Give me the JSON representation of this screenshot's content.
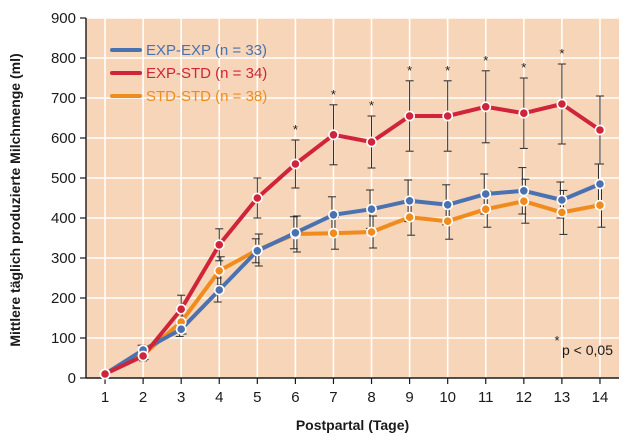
{
  "chart_data": {
    "type": "line",
    "xlabel": "Postpartal (Tage)",
    "ylabel": "Mittlere täglich produzierte Milchmenge (ml)",
    "x": [
      1,
      2,
      3,
      4,
      5,
      6,
      7,
      8,
      9,
      10,
      11,
      12,
      13,
      14
    ],
    "xlim": [
      0.5,
      14.5
    ],
    "ylim": [
      0,
      900
    ],
    "yticks": [
      0,
      100,
      200,
      300,
      400,
      500,
      600,
      700,
      800,
      900
    ],
    "grid": true,
    "legend_position": "top-left",
    "background_color": "#f6d5b8",
    "grid_color": "#ffffff",
    "series": [
      {
        "name": "EXP-EXP (n = 33)",
        "color": "#4a72b0",
        "values": [
          10,
          70,
          122,
          220,
          318,
          363,
          408,
          422,
          443,
          433,
          460,
          468,
          445,
          485
        ],
        "errors": [
          5,
          12,
          18,
          30,
          30,
          40,
          45,
          48,
          52,
          50,
          50,
          58,
          45,
          50
        ]
      },
      {
        "name": "EXP-STD (n = 34)",
        "color": "#d0243a",
        "values": [
          10,
          55,
          172,
          333,
          450,
          535,
          608,
          590,
          655,
          655,
          678,
          662,
          685,
          620
        ],
        "errors": [
          5,
          12,
          35,
          40,
          50,
          60,
          75,
          65,
          88,
          88,
          90,
          88,
          100,
          85
        ]
      },
      {
        "name": "STD-STD (n = 38)",
        "color": "#f08c1e",
        "values": [
          10,
          58,
          140,
          268,
          320,
          360,
          362,
          365,
          402,
          392,
          422,
          442,
          414,
          432
        ],
        "errors": [
          5,
          12,
          30,
          35,
          40,
          45,
          40,
          40,
          45,
          45,
          45,
          55,
          55,
          55
        ]
      }
    ],
    "significance_days": [
      6,
      7,
      8,
      9,
      10,
      11,
      12,
      13
    ],
    "annotation": "p < 0,05",
    "annotation_symbol": "*"
  }
}
